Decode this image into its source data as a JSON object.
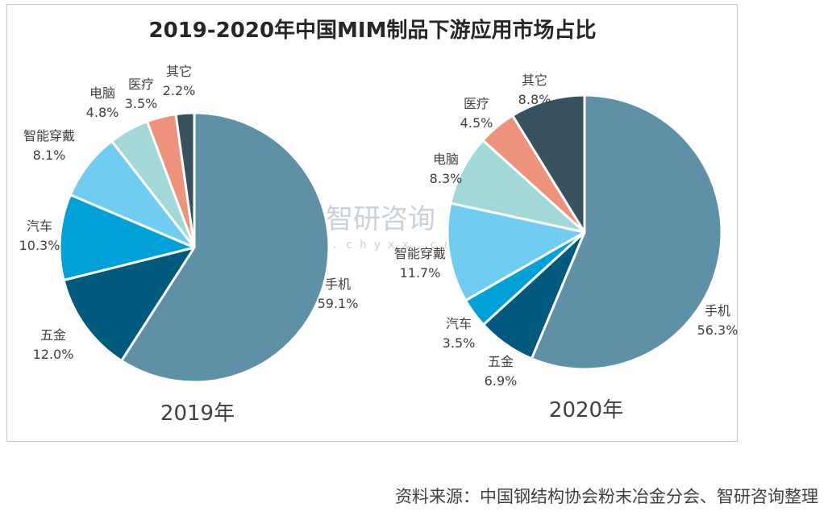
{
  "chart_data": [
    {
      "type": "pie",
      "title": "2019-2020年中国MIM制品下游应用市场占比",
      "caption": "2019年",
      "categories": [
        "手机",
        "五金",
        "汽车",
        "智能穿戴",
        "电脑",
        "医疗",
        "其它"
      ],
      "values": [
        59.1,
        12.0,
        10.3,
        8.1,
        4.8,
        3.5,
        2.2
      ],
      "value_labels": [
        "59.1%",
        "12.0%",
        "10.3%",
        "8.1%",
        "4.8%",
        "3.5%",
        "2.2%"
      ],
      "colors": [
        "#5e91a7",
        "#005a7e",
        "#00a0d8",
        "#70cdf1",
        "#a2d9d8",
        "#ef927c",
        "#37515e"
      ]
    },
    {
      "type": "pie",
      "caption": "2020年",
      "categories": [
        "手机",
        "五金",
        "汽车",
        "智能穿戴",
        "电脑",
        "医疗",
        "其它"
      ],
      "values": [
        56.3,
        6.9,
        3.5,
        11.7,
        8.3,
        4.5,
        8.8
      ],
      "value_labels": [
        "56.3%",
        "6.9%",
        "3.5%",
        "11.7%",
        "8.3%",
        "4.5%",
        "8.8%"
      ],
      "colors": [
        "#5e91a7",
        "#005a7e",
        "#00a0d8",
        "#70cdf1",
        "#a2d9d8",
        "#ef927c",
        "#37515e"
      ]
    }
  ],
  "watermark": {
    "name": "智研咨询",
    "url": "www.chyxx.com"
  },
  "source": "资料来源：中国钢结构协会粉末冶金分会、智研咨询整理"
}
